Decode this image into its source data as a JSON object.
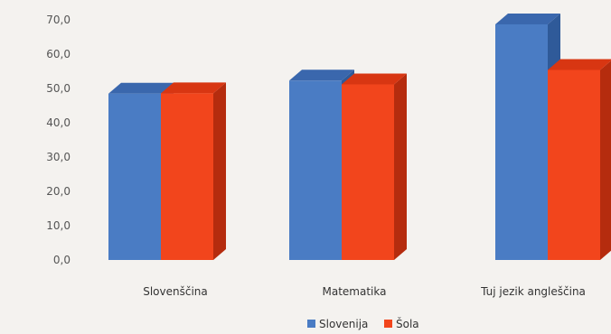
{
  "chart_data": {
    "type": "bar",
    "title": "",
    "xlabel": "",
    "ylabel": "",
    "categories": [
      "Slovenščina",
      "Matematika",
      "Tuj jezik angleščina"
    ],
    "series": [
      {
        "name": "Slovenija",
        "values": [
          48.5,
          52.3,
          68.7
        ]
      },
      {
        "name": "Šola",
        "values": [
          48.6,
          51.2,
          55.4
        ]
      }
    ],
    "ylim": [
      0,
      70
    ],
    "yticks": [
      "0,0",
      "10,0",
      "20,0",
      "30,0",
      "40,0",
      "50,0",
      "60,0",
      "70,0"
    ],
    "grid": false,
    "legend_position": "bottom",
    "colors": {
      "Slovenija": "#4a7cc4",
      "Slovenija_side": "#2f5a99",
      "Slovenija_top": "#3a67ad",
      "Šola": "#f2451c",
      "Šola_side": "#b52c0e",
      "Šola_top": "#d83612"
    }
  }
}
